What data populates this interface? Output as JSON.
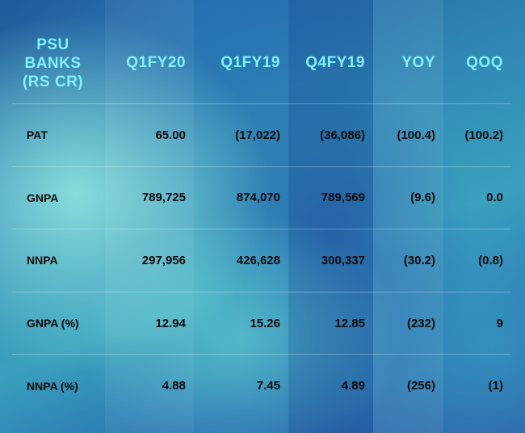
{
  "table": {
    "header": {
      "first_line1": "PSU",
      "first_line2": "BANKS",
      "first_line3": "(RS CR)",
      "columns": [
        "Q1FY20",
        "Q1FY19",
        "Q4FY19",
        "YOY",
        "QOQ"
      ]
    },
    "rows": [
      {
        "label": "PAT",
        "values": [
          "65.00",
          "(17,022)",
          "(36,086)",
          "(100.4)",
          "(100.2)"
        ]
      },
      {
        "label": "GNPA",
        "values": [
          "789,725",
          "874,070",
          "789,569",
          "(9.6)",
          "0.0"
        ]
      },
      {
        "label": "NNPA",
        "values": [
          "297,956",
          "426,628",
          "300,337",
          "(30.2)",
          "(0.8)"
        ]
      },
      {
        "label": "GNPA (%)",
        "values": [
          "12.94",
          "15.26",
          "12.85",
          "(232)",
          "9"
        ]
      },
      {
        "label": "NNPA (%)",
        "values": [
          "4.88",
          "7.45",
          "4.89",
          "(256)",
          "(1)"
        ]
      }
    ]
  },
  "colors": {
    "header_text": "#7ff2ff",
    "body_text": "#0b0b0b"
  }
}
